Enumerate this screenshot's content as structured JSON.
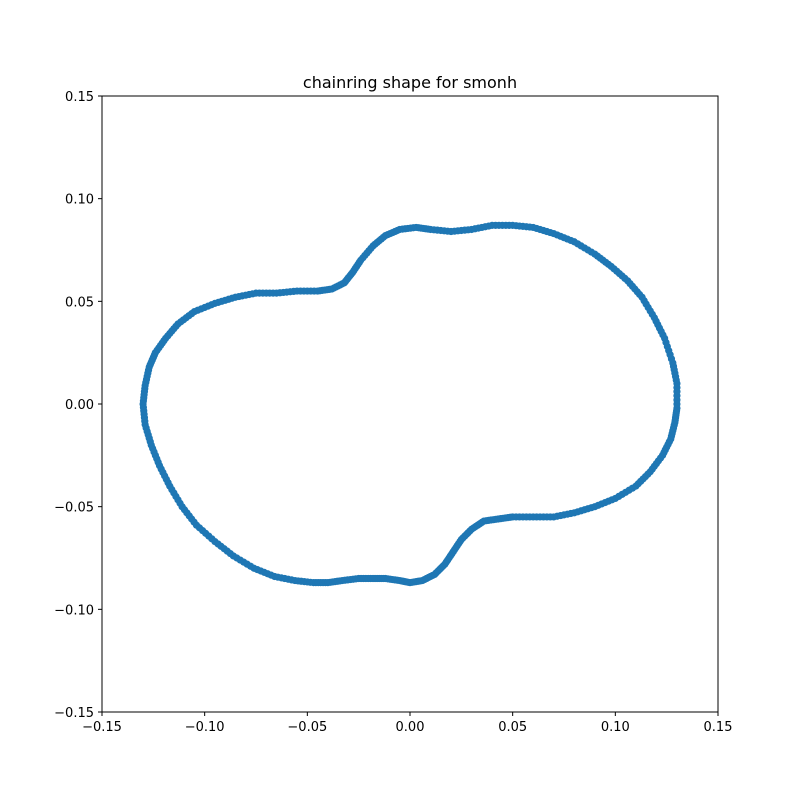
{
  "chart_data": {
    "type": "scatter",
    "title": "chainring shape for smonh",
    "xlabel": "",
    "ylabel": "",
    "xlim": [
      -0.15,
      0.15
    ],
    "ylim": [
      -0.15,
      0.15
    ],
    "x_ticks": [
      -0.15,
      -0.1,
      -0.05,
      0.0,
      0.05,
      0.1,
      0.15
    ],
    "x_tick_labels": [
      "−0.15",
      "−0.10",
      "−0.05",
      "0.00",
      "0.05",
      "0.10",
      "0.15"
    ],
    "y_ticks": [
      -0.15,
      -0.1,
      -0.05,
      0.0,
      0.05,
      0.1,
      0.15
    ],
    "y_tick_labels": [
      "−0.15",
      "−0.10",
      "−0.05",
      "0.00",
      "0.05",
      "0.10",
      "0.15"
    ],
    "grid": false,
    "closed": true,
    "marker_color": "#1f77b4",
    "series": [
      {
        "points": [
          [
            0.13,
            0.01
          ],
          [
            0.128,
            0.02
          ],
          [
            0.124,
            0.032
          ],
          [
            0.119,
            0.042
          ],
          [
            0.113,
            0.052
          ],
          [
            0.106,
            0.06
          ],
          [
            0.098,
            0.067
          ],
          [
            0.09,
            0.073
          ],
          [
            0.08,
            0.079
          ],
          [
            0.07,
            0.083
          ],
          [
            0.06,
            0.086
          ],
          [
            0.05,
            0.087
          ],
          [
            0.04,
            0.087
          ],
          [
            0.03,
            0.085
          ],
          [
            0.02,
            0.084
          ],
          [
            0.01,
            0.085
          ],
          [
            0.003,
            0.086
          ],
          [
            -0.005,
            0.085
          ],
          [
            -0.012,
            0.082
          ],
          [
            -0.018,
            0.077
          ],
          [
            -0.024,
            0.07
          ],
          [
            -0.028,
            0.064
          ],
          [
            -0.032,
            0.059
          ],
          [
            -0.038,
            0.056
          ],
          [
            -0.045,
            0.055
          ],
          [
            -0.055,
            0.055
          ],
          [
            -0.065,
            0.054
          ],
          [
            -0.075,
            0.054
          ],
          [
            -0.085,
            0.052
          ],
          [
            -0.095,
            0.049
          ],
          [
            -0.105,
            0.045
          ],
          [
            -0.113,
            0.039
          ],
          [
            -0.119,
            0.032
          ],
          [
            -0.124,
            0.025
          ],
          [
            -0.127,
            0.018
          ],
          [
            -0.129,
            0.009
          ],
          [
            -0.13,
            0.0
          ],
          [
            -0.129,
            -0.01
          ],
          [
            -0.126,
            -0.02
          ],
          [
            -0.122,
            -0.03
          ],
          [
            -0.117,
            -0.04
          ],
          [
            -0.111,
            -0.05
          ],
          [
            -0.104,
            -0.059
          ],
          [
            -0.095,
            -0.067
          ],
          [
            -0.086,
            -0.074
          ],
          [
            -0.076,
            -0.08
          ],
          [
            -0.066,
            -0.084
          ],
          [
            -0.056,
            -0.086
          ],
          [
            -0.047,
            -0.087
          ],
          [
            -0.04,
            -0.087
          ],
          [
            -0.033,
            -0.086
          ],
          [
            -0.025,
            -0.085
          ],
          [
            -0.018,
            -0.085
          ],
          [
            -0.012,
            -0.085
          ],
          [
            -0.005,
            -0.086
          ],
          [
            0.0,
            -0.087
          ],
          [
            0.006,
            -0.086
          ],
          [
            0.012,
            -0.083
          ],
          [
            0.017,
            -0.078
          ],
          [
            0.021,
            -0.072
          ],
          [
            0.025,
            -0.066
          ],
          [
            0.03,
            -0.061
          ],
          [
            0.036,
            -0.057
          ],
          [
            0.043,
            -0.056
          ],
          [
            0.05,
            -0.055
          ],
          [
            0.06,
            -0.055
          ],
          [
            0.07,
            -0.055
          ],
          [
            0.08,
            -0.053
          ],
          [
            0.09,
            -0.05
          ],
          [
            0.1,
            -0.046
          ],
          [
            0.11,
            -0.04
          ],
          [
            0.117,
            -0.033
          ],
          [
            0.123,
            -0.025
          ],
          [
            0.127,
            -0.017
          ],
          [
            0.129,
            -0.009
          ],
          [
            0.13,
            -0.002
          ]
        ]
      }
    ]
  }
}
